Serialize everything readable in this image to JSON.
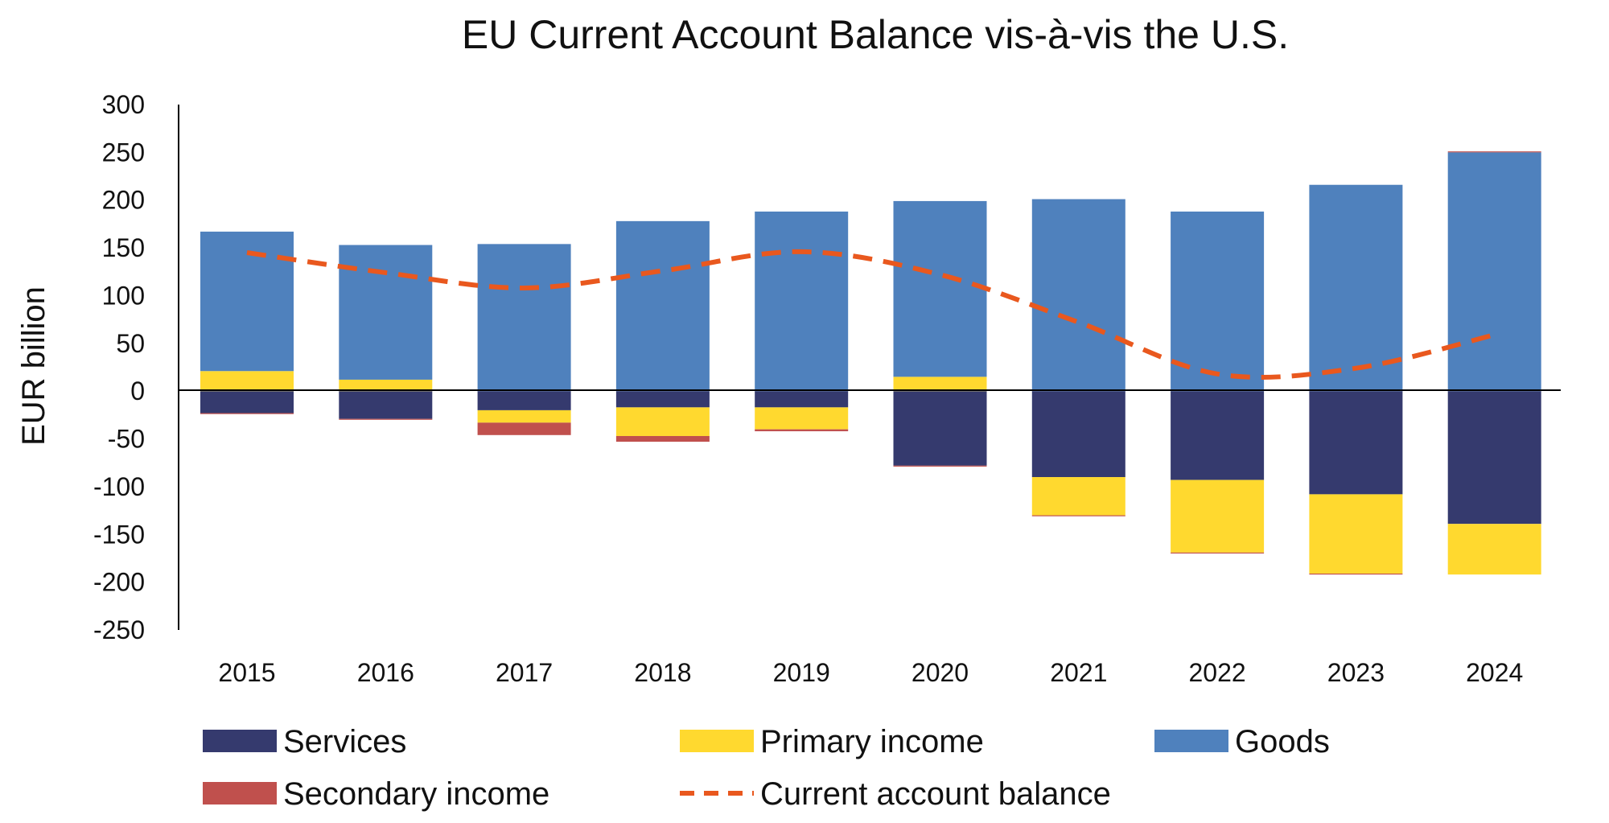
{
  "chart_data": {
    "type": "bar",
    "stacked": true,
    "title": "EU Current Account Balance vis-à-vis the U.S.",
    "xlabel": "",
    "ylabel": "EUR billion",
    "ylim": [
      -250,
      300
    ],
    "yticks": [
      300,
      250,
      200,
      150,
      100,
      50,
      0,
      -50,
      -100,
      -150,
      -200,
      -250
    ],
    "categories": [
      "2015",
      "2016",
      "2017",
      "2018",
      "2019",
      "2020",
      "2021",
      "2022",
      "2023",
      "2024"
    ],
    "series": [
      {
        "name": "Services",
        "color": "#353A6E",
        "values": [
          -23,
          -29,
          -20,
          -17,
          -17,
          -78,
          -90,
          -93,
          -108,
          -139
        ]
      },
      {
        "name": "Primary income",
        "color": "#FFD92F",
        "values": [
          21,
          12,
          -13,
          -30,
          -23,
          15,
          -40,
          -76,
          -83,
          -53
        ]
      },
      {
        "name": "Goods",
        "color": "#4F81BD",
        "values": [
          146,
          141,
          154,
          178,
          188,
          184,
          201,
          188,
          216,
          250
        ]
      },
      {
        "name": "Secondary income",
        "color": "#C0504D",
        "values": [
          -1,
          -1,
          -13,
          -6,
          -2,
          -1,
          -1,
          -1,
          -1,
          1
        ]
      }
    ],
    "line_series": {
      "name": "Current account balance",
      "color": "#E9581E",
      "style": "dashed",
      "values": [
        145,
        124,
        108,
        126,
        146,
        122,
        72,
        18,
        24,
        59
      ]
    },
    "legend": [
      "Services",
      "Primary income",
      "Goods",
      "Secondary income",
      "Current account balance"
    ],
    "legend_position": "bottom",
    "zero_line": true
  }
}
